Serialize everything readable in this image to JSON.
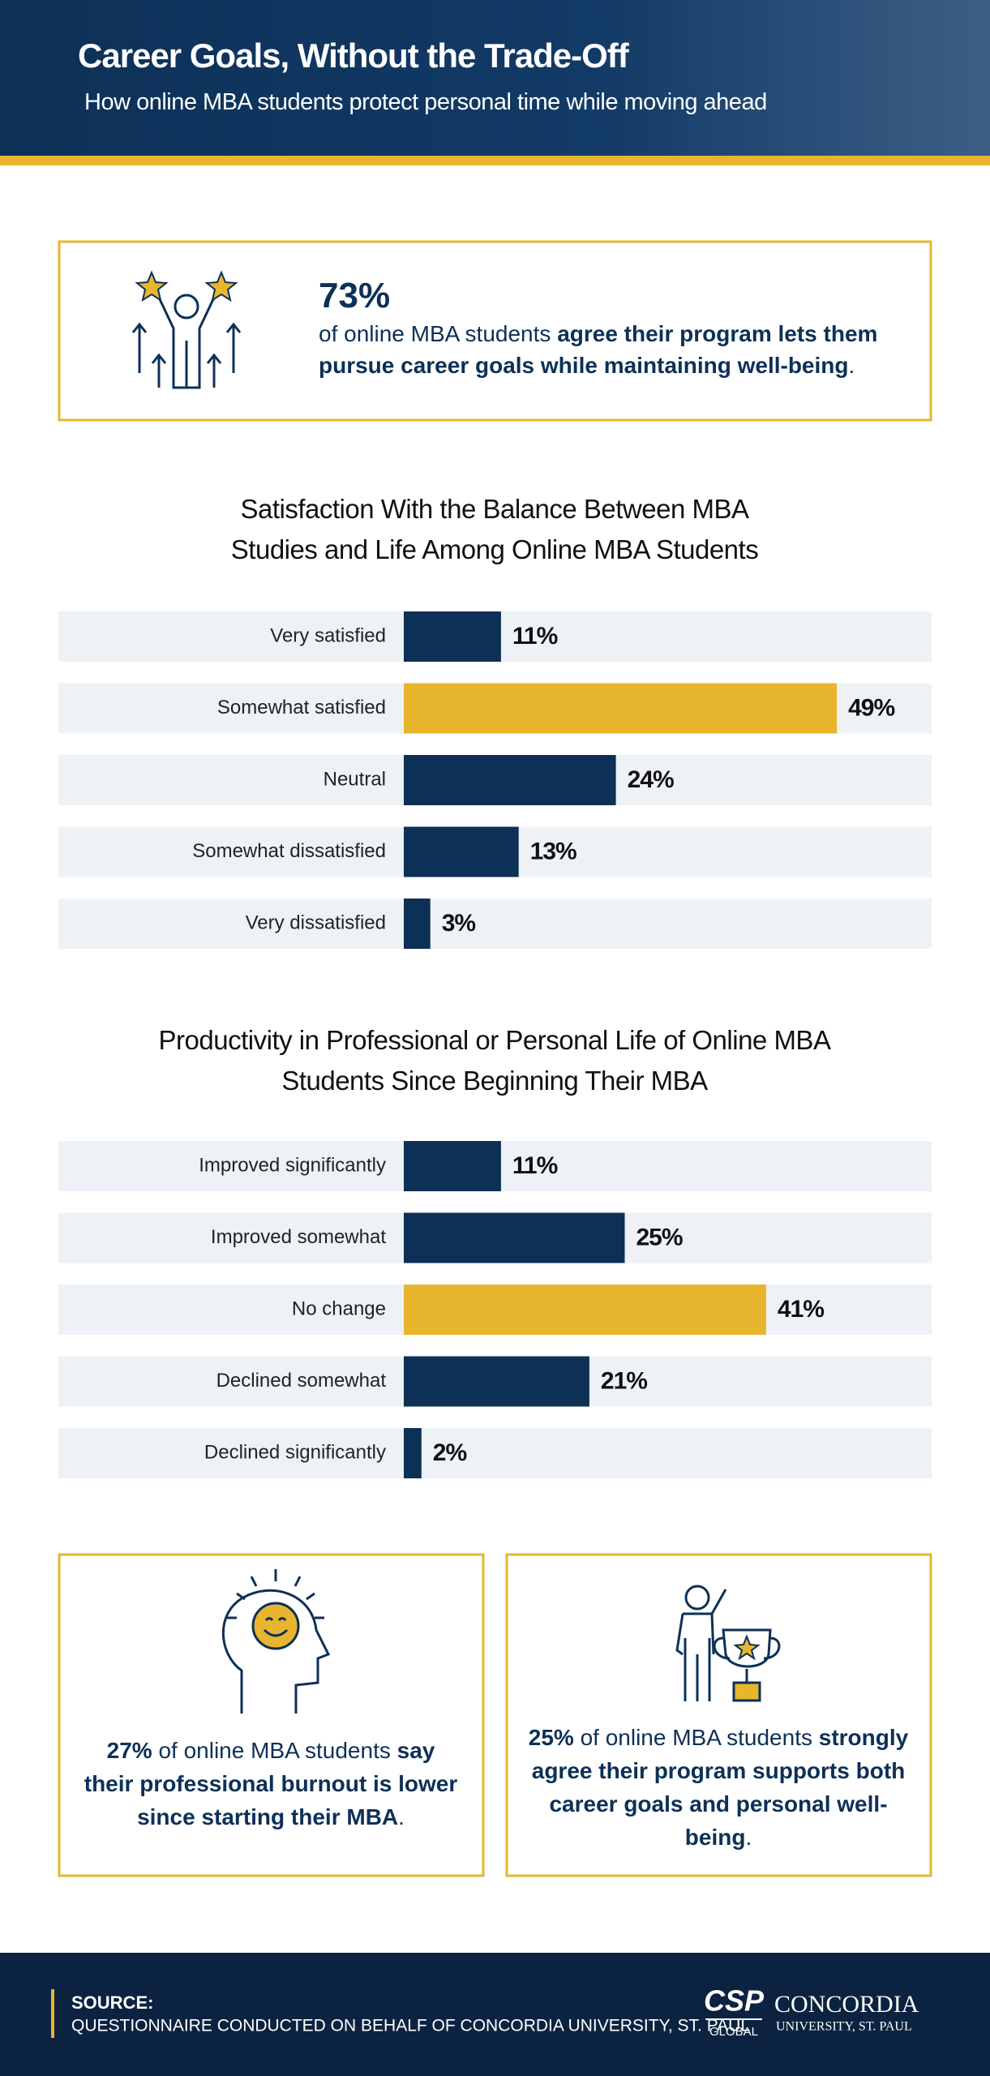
{
  "header": {
    "title": "Career Goals, Without the Trade-Off",
    "subtitle": "How online MBA students protect personal time while moving ahead"
  },
  "callout": {
    "stat": "73%",
    "text": "of online MBA students",
    "emphasis": "agree their program lets them pursue career goals while maintaining well-being",
    "end": "."
  },
  "chart_data": [
    {
      "type": "bar",
      "title": "Satisfaction With the Balance Between MBA Studies and Life Among Online MBA Students",
      "categories": [
        "Very satisfied",
        "Somewhat satisfied",
        "Neutral",
        "Somewhat dissatisfied",
        "Very dissatisfied"
      ],
      "values": [
        11,
        49,
        24,
        13,
        3
      ],
      "value_labels": [
        "11%",
        "49%",
        "24%",
        "13%",
        "3%"
      ],
      "colors": [
        "#0d3057",
        "#e8b52f",
        "#0d3057",
        "#0d3057",
        "#0d3057"
      ]
    },
    {
      "type": "bar",
      "title": "Productivity in Professional or Personal Life of Online MBA Students Since Beginning Their MBA",
      "categories": [
        "Improved significantly",
        "Improved somewhat",
        "No change",
        "Declined somewhat",
        "Declined significantly"
      ],
      "values": [
        11,
        25,
        41,
        21,
        2
      ],
      "value_labels": [
        "11%",
        "25%",
        "41%",
        "21%",
        "2%"
      ],
      "colors": [
        "#0d3057",
        "#0d3057",
        "#e8b52f",
        "#0d3057",
        "#0d3057"
      ]
    }
  ],
  "stats": [
    {
      "stat": "27%",
      "text": "of online MBA students",
      "emphasis": "say their professional burnout is lower since starting their MBA",
      "end": "."
    },
    {
      "stat": "25%",
      "text": "of online MBA students",
      "emphasis": "strongly agree their program supports both career goals and personal well-being",
      "end": "."
    }
  ],
  "footer": {
    "source_label": "SOURCE:",
    "source": "QUESTIONNAIRE CONDUCTED ON BEHALF OF CONCORDIA UNIVERSITY, ST. PAUL",
    "logo": {
      "mark": "CSP",
      "global": "GLOBAL",
      "name": "CONCORDIA",
      "sub": "UNIVERSITY, ST. PAUL"
    }
  }
}
